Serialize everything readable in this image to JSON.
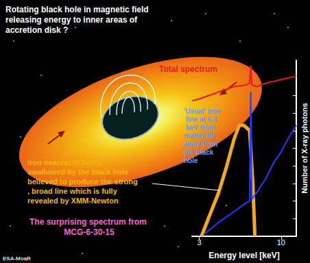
{
  "chart_data": {
    "type": "line",
    "title": "The surprising spectrum from MCG-6-30-15",
    "x_label": "Energy level [keV]",
    "y_label": "Number of X-ray photons",
    "log": "x",
    "grid": false,
    "tick_labels": "x",
    "xlim": [
      2.7,
      12.5
    ],
    "xticks": [
      3,
      10
    ],
    "ylim": [
      0,
      100
    ],
    "yticks": [
      0,
      10,
      20,
      30,
      40,
      50,
      60,
      70,
      80
    ],
    "series": [
      {
        "name": "Total spectrum",
        "color": "#e8182a",
        "x": [
          2.7,
          3,
          4,
          5,
          6,
          6.3,
          6.4,
          6.5,
          7,
          8,
          10,
          12.5
        ],
        "values": [
          77,
          78,
          82,
          85,
          86,
          87,
          97,
          86,
          85,
          87,
          89,
          91
        ]
      },
      {
        "color": "#f5a623",
        "x": [
          3.1,
          3.5,
          4,
          4.5,
          5,
          5.4,
          5.8,
          6.3,
          6.6,
          6.8
        ],
        "values": [
          0,
          12,
          25,
          40,
          55,
          63,
          63,
          60,
          30,
          0
        ]
      },
      {
        "color": "#1f3cff",
        "x": [
          3.2,
          4,
          5,
          6,
          6.3,
          6.4,
          6.5,
          7,
          8,
          9,
          10,
          11,
          12.5
        ],
        "values": [
          1,
          8,
          14,
          19,
          20,
          82,
          21,
          25,
          33,
          42,
          48,
          55,
          63
        ]
      }
    ],
    "annotations": [
      "Rotating black hole in magnetic field releasing energy to inner areas of accretion disk ?",
      "'Usual' iron line at 6.4 keV from matter far away from the black hole",
      "Iron nearest to being swallowed by the black hole believed to produce the strong, broad line which is fully revealed by XMM-Newton",
      "ESA-MoaR"
    ]
  }
}
